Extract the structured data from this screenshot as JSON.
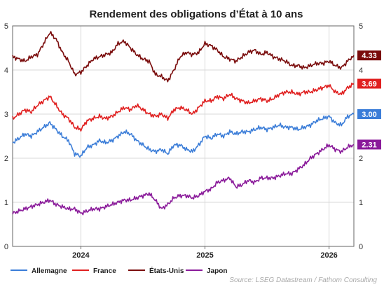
{
  "chart_data": {
    "type": "line",
    "title": "Rendement des obligations d’État à 10 ans",
    "ylim": [
      0,
      5
    ],
    "y_ticks": [
      "0",
      "1",
      "2",
      "3",
      "4",
      "5"
    ],
    "x_ticks": [
      {
        "label": "2024",
        "t": 2024.0
      },
      {
        "label": "2025",
        "t": 2025.0
      },
      {
        "label": "2026",
        "t": 2026.0
      }
    ],
    "xlim": [
      2023.45,
      2026.2
    ],
    "grid": true,
    "legend_position": "bottom",
    "source": "Source: LSEG Datastream / Fathom Consulting",
    "series": [
      {
        "name": "Allemagne",
        "color": "#3b7dd8",
        "end_label": "3.00",
        "points": [
          [
            2023.45,
            2.35
          ],
          [
            2023.5,
            2.45
          ],
          [
            2023.55,
            2.55
          ],
          [
            2023.6,
            2.5
          ],
          [
            2023.65,
            2.6
          ],
          [
            2023.7,
            2.7
          ],
          [
            2023.75,
            2.8
          ],
          [
            2023.8,
            2.65
          ],
          [
            2023.85,
            2.5
          ],
          [
            2023.9,
            2.4
          ],
          [
            2023.95,
            2.1
          ],
          [
            2024.0,
            2.05
          ],
          [
            2024.05,
            2.25
          ],
          [
            2024.1,
            2.3
          ],
          [
            2024.15,
            2.4
          ],
          [
            2024.2,
            2.35
          ],
          [
            2024.25,
            2.4
          ],
          [
            2024.3,
            2.5
          ],
          [
            2024.35,
            2.6
          ],
          [
            2024.4,
            2.55
          ],
          [
            2024.45,
            2.4
          ],
          [
            2024.5,
            2.3
          ],
          [
            2024.55,
            2.2
          ],
          [
            2024.6,
            2.15
          ],
          [
            2024.65,
            2.2
          ],
          [
            2024.7,
            2.1
          ],
          [
            2024.75,
            2.3
          ],
          [
            2024.8,
            2.3
          ],
          [
            2024.85,
            2.2
          ],
          [
            2024.9,
            2.15
          ],
          [
            2024.95,
            2.3
          ],
          [
            2025.0,
            2.5
          ],
          [
            2025.05,
            2.45
          ],
          [
            2025.1,
            2.55
          ],
          [
            2025.15,
            2.5
          ],
          [
            2025.2,
            2.6
          ],
          [
            2025.25,
            2.55
          ],
          [
            2025.3,
            2.6
          ],
          [
            2025.35,
            2.6
          ],
          [
            2025.4,
            2.65
          ],
          [
            2025.45,
            2.7
          ],
          [
            2025.5,
            2.65
          ],
          [
            2025.55,
            2.7
          ],
          [
            2025.6,
            2.75
          ],
          [
            2025.65,
            2.7
          ],
          [
            2025.7,
            2.7
          ],
          [
            2025.75,
            2.65
          ],
          [
            2025.8,
            2.7
          ],
          [
            2025.85,
            2.75
          ],
          [
            2025.9,
            2.85
          ],
          [
            2025.95,
            2.9
          ],
          [
            2026.0,
            2.95
          ],
          [
            2026.05,
            2.8
          ],
          [
            2026.1,
            2.75
          ],
          [
            2026.15,
            2.95
          ],
          [
            2026.2,
            3.0
          ]
        ]
      },
      {
        "name": "France",
        "color": "#e02020",
        "end_label": "3.69",
        "points": [
          [
            2023.45,
            2.9
          ],
          [
            2023.5,
            3.0
          ],
          [
            2023.55,
            3.1
          ],
          [
            2023.6,
            3.05
          ],
          [
            2023.65,
            3.2
          ],
          [
            2023.7,
            3.3
          ],
          [
            2023.75,
            3.4
          ],
          [
            2023.8,
            3.2
          ],
          [
            2023.85,
            3.0
          ],
          [
            2023.9,
            2.9
          ],
          [
            2023.95,
            2.7
          ],
          [
            2024.0,
            2.65
          ],
          [
            2024.05,
            2.85
          ],
          [
            2024.1,
            2.9
          ],
          [
            2024.15,
            2.95
          ],
          [
            2024.2,
            2.9
          ],
          [
            2024.25,
            2.95
          ],
          [
            2024.3,
            3.05
          ],
          [
            2024.35,
            3.15
          ],
          [
            2024.4,
            3.1
          ],
          [
            2024.45,
            3.2
          ],
          [
            2024.5,
            3.1
          ],
          [
            2024.55,
            3.0
          ],
          [
            2024.6,
            2.95
          ],
          [
            2024.65,
            3.0
          ],
          [
            2024.7,
            2.9
          ],
          [
            2024.75,
            3.1
          ],
          [
            2024.8,
            3.15
          ],
          [
            2024.85,
            3.1
          ],
          [
            2024.9,
            3.0
          ],
          [
            2024.95,
            3.15
          ],
          [
            2025.0,
            3.3
          ],
          [
            2025.05,
            3.3
          ],
          [
            2025.1,
            3.4
          ],
          [
            2025.15,
            3.35
          ],
          [
            2025.2,
            3.45
          ],
          [
            2025.25,
            3.35
          ],
          [
            2025.3,
            3.3
          ],
          [
            2025.35,
            3.25
          ],
          [
            2025.4,
            3.3
          ],
          [
            2025.45,
            3.35
          ],
          [
            2025.5,
            3.3
          ],
          [
            2025.55,
            3.35
          ],
          [
            2025.6,
            3.45
          ],
          [
            2025.65,
            3.5
          ],
          [
            2025.7,
            3.5
          ],
          [
            2025.75,
            3.45
          ],
          [
            2025.8,
            3.5
          ],
          [
            2025.85,
            3.5
          ],
          [
            2025.9,
            3.55
          ],
          [
            2025.95,
            3.6
          ],
          [
            2026.0,
            3.65
          ],
          [
            2026.05,
            3.5
          ],
          [
            2026.1,
            3.45
          ],
          [
            2026.15,
            3.6
          ],
          [
            2026.2,
            3.69
          ]
        ]
      },
      {
        "name": "États-Unis",
        "color": "#7a0c0c",
        "end_label": "4.33",
        "points": [
          [
            2023.45,
            4.3
          ],
          [
            2023.5,
            4.25
          ],
          [
            2023.55,
            4.2
          ],
          [
            2023.6,
            4.3
          ],
          [
            2023.65,
            4.35
          ],
          [
            2023.7,
            4.6
          ],
          [
            2023.75,
            4.85
          ],
          [
            2023.8,
            4.7
          ],
          [
            2023.85,
            4.4
          ],
          [
            2023.9,
            4.2
          ],
          [
            2023.95,
            3.9
          ],
          [
            2024.0,
            3.95
          ],
          [
            2024.05,
            4.1
          ],
          [
            2024.1,
            4.25
          ],
          [
            2024.15,
            4.3
          ],
          [
            2024.2,
            4.35
          ],
          [
            2024.25,
            4.4
          ],
          [
            2024.3,
            4.6
          ],
          [
            2024.35,
            4.65
          ],
          [
            2024.4,
            4.5
          ],
          [
            2024.45,
            4.35
          ],
          [
            2024.5,
            4.25
          ],
          [
            2024.55,
            4.2
          ],
          [
            2024.6,
            3.9
          ],
          [
            2024.65,
            3.85
          ],
          [
            2024.7,
            3.75
          ],
          [
            2024.75,
            4.0
          ],
          [
            2024.8,
            4.3
          ],
          [
            2024.85,
            4.4
          ],
          [
            2024.9,
            4.35
          ],
          [
            2024.95,
            4.4
          ],
          [
            2025.0,
            4.6
          ],
          [
            2025.05,
            4.55
          ],
          [
            2025.1,
            4.45
          ],
          [
            2025.15,
            4.3
          ],
          [
            2025.2,
            4.25
          ],
          [
            2025.25,
            4.2
          ],
          [
            2025.3,
            4.3
          ],
          [
            2025.35,
            4.4
          ],
          [
            2025.4,
            4.45
          ],
          [
            2025.45,
            4.35
          ],
          [
            2025.5,
            4.4
          ],
          [
            2025.55,
            4.3
          ],
          [
            2025.6,
            4.25
          ],
          [
            2025.65,
            4.2
          ],
          [
            2025.7,
            4.1
          ],
          [
            2025.75,
            4.1
          ],
          [
            2025.8,
            4.05
          ],
          [
            2025.85,
            4.1
          ],
          [
            2025.9,
            4.15
          ],
          [
            2025.95,
            4.15
          ],
          [
            2026.0,
            4.2
          ],
          [
            2026.05,
            4.1
          ],
          [
            2026.1,
            4.05
          ],
          [
            2026.15,
            4.2
          ],
          [
            2026.2,
            4.33
          ]
        ]
      },
      {
        "name": "Japon",
        "color": "#8a1a9a",
        "end_label": "2.31",
        "points": [
          [
            2023.45,
            0.75
          ],
          [
            2023.5,
            0.8
          ],
          [
            2023.55,
            0.85
          ],
          [
            2023.6,
            0.9
          ],
          [
            2023.65,
            0.95
          ],
          [
            2023.7,
            1.0
          ],
          [
            2023.75,
            1.05
          ],
          [
            2023.8,
            0.95
          ],
          [
            2023.85,
            0.9
          ],
          [
            2023.9,
            0.85
          ],
          [
            2023.95,
            0.85
          ],
          [
            2024.0,
            0.75
          ],
          [
            2024.05,
            0.8
          ],
          [
            2024.1,
            0.85
          ],
          [
            2024.15,
            0.85
          ],
          [
            2024.2,
            0.9
          ],
          [
            2024.25,
            0.95
          ],
          [
            2024.3,
            1.0
          ],
          [
            2024.35,
            1.05
          ],
          [
            2024.4,
            1.05
          ],
          [
            2024.45,
            1.1
          ],
          [
            2024.5,
            1.15
          ],
          [
            2024.55,
            1.2
          ],
          [
            2024.6,
            1.05
          ],
          [
            2024.65,
            0.85
          ],
          [
            2024.7,
            0.95
          ],
          [
            2024.75,
            1.1
          ],
          [
            2024.8,
            1.15
          ],
          [
            2024.85,
            1.15
          ],
          [
            2024.9,
            1.1
          ],
          [
            2024.95,
            1.15
          ],
          [
            2025.0,
            1.25
          ],
          [
            2025.05,
            1.3
          ],
          [
            2025.1,
            1.45
          ],
          [
            2025.15,
            1.5
          ],
          [
            2025.2,
            1.55
          ],
          [
            2025.25,
            1.35
          ],
          [
            2025.3,
            1.4
          ],
          [
            2025.35,
            1.5
          ],
          [
            2025.4,
            1.45
          ],
          [
            2025.45,
            1.55
          ],
          [
            2025.5,
            1.55
          ],
          [
            2025.55,
            1.55
          ],
          [
            2025.6,
            1.6
          ],
          [
            2025.65,
            1.65
          ],
          [
            2025.7,
            1.65
          ],
          [
            2025.75,
            1.75
          ],
          [
            2025.8,
            1.85
          ],
          [
            2025.85,
            2.0
          ],
          [
            2025.9,
            2.1
          ],
          [
            2025.95,
            2.2
          ],
          [
            2026.0,
            2.3
          ],
          [
            2026.05,
            2.2
          ],
          [
            2026.1,
            2.15
          ],
          [
            2026.15,
            2.25
          ],
          [
            2026.2,
            2.31
          ]
        ]
      }
    ]
  }
}
